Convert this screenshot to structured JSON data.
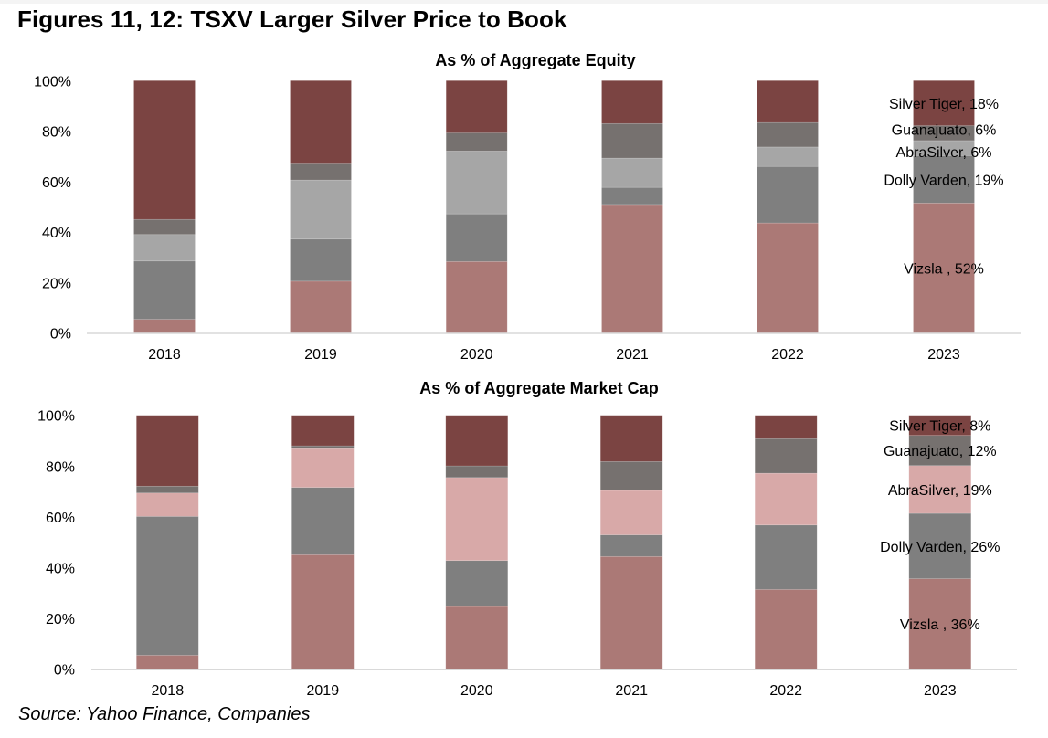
{
  "title": "Figures 11, 12: TSXV Larger Silver Price to Book",
  "source": "Source: Yahoo Finance, Companies",
  "chart_data": [
    {
      "type": "bar",
      "stacked": true,
      "title": "As % of Aggregate Equity",
      "xlabel": "",
      "ylabel": "",
      "categories": [
        "2018",
        "2019",
        "2020",
        "2021",
        "2022",
        "2023"
      ],
      "ylim": [
        0,
        100
      ],
      "yticks": [
        "0%",
        "20%",
        "40%",
        "60%",
        "80%",
        "100%"
      ],
      "grid": false,
      "legend": "none (labels on last bar)",
      "series": [
        {
          "name": "Vizsla",
          "color": "#AB7976",
          "values": [
            5.4,
            20.5,
            28.3,
            50.9,
            43.6,
            52
          ]
        },
        {
          "name": "Dolly Varden",
          "color": "#7F7F7F",
          "values": [
            23.1,
            16.7,
            18.9,
            6.8,
            22.4,
            19
          ]
        },
        {
          "name": "AbraSilver",
          "color": "#A6A6A6",
          "values": [
            10.5,
            23.4,
            24.9,
            11.6,
            7.7,
            6
          ]
        },
        {
          "name": "Guanajuato",
          "color": "#76716F",
          "values": [
            6.0,
            6.4,
            7.2,
            13.7,
            9.7,
            6
          ]
        },
        {
          "name": "Silver Tiger",
          "color": "#7B4442",
          "values": [
            55.0,
            33.0,
            20.7,
            17.0,
            16.6,
            18
          ]
        }
      ],
      "annotations": [
        {
          "series": "Vizsla",
          "category": "2023",
          "text": "Vizsla , 52%"
        },
        {
          "series": "Dolly Varden",
          "category": "2023",
          "text": "Dolly Varden, 19%"
        },
        {
          "series": "AbraSilver",
          "category": "2023",
          "text": "AbraSilver, 6%"
        },
        {
          "series": "Guanajuato",
          "category": "2023",
          "text": "Guanajuato, 6%"
        },
        {
          "series": "Silver Tiger",
          "category": "2023",
          "text": "Silver Tiger, 18%"
        }
      ]
    },
    {
      "type": "bar",
      "stacked": true,
      "title": "As % of Aggregate Market Cap",
      "xlabel": "",
      "ylabel": "",
      "categories": [
        "2018",
        "2019",
        "2020",
        "2021",
        "2022",
        "2023"
      ],
      "ylim": [
        0,
        100
      ],
      "yticks": [
        "0%",
        "20%",
        "40%",
        "60%",
        "80%",
        "100%"
      ],
      "grid": false,
      "legend": "none (labels on last bar)",
      "series": [
        {
          "name": "Vizsla",
          "color": "#AB7976",
          "values": [
            5.5,
            45.1,
            24.7,
            44.4,
            31.4,
            36
          ]
        },
        {
          "name": "Dolly Varden",
          "color": "#7F7F7F",
          "values": [
            54.7,
            26.5,
            18.1,
            8.5,
            25.4,
            26
          ]
        },
        {
          "name": "AbraSilver",
          "color": "#D8A9A8",
          "values": [
            9.2,
            15.3,
            32.7,
            17.5,
            20.4,
            19
          ]
        },
        {
          "name": "Guanajuato",
          "color": "#76716F",
          "values": [
            2.7,
            1.1,
            4.6,
            11.4,
            13.6,
            12
          ]
        },
        {
          "name": "Silver Tiger",
          "color": "#7B4442",
          "values": [
            27.9,
            12.0,
            19.9,
            18.2,
            9.2,
            8
          ]
        }
      ],
      "annotations": [
        {
          "series": "Vizsla",
          "category": "2023",
          "text": "Vizsla , 36%"
        },
        {
          "series": "Dolly Varden",
          "category": "2023",
          "text": "Dolly Varden, 26%"
        },
        {
          "series": "AbraSilver",
          "category": "2023",
          "text": "AbraSilver, 19%"
        },
        {
          "series": "Guanajuato",
          "category": "2023",
          "text": "Guanajuato, 12%"
        },
        {
          "series": "Silver Tiger",
          "category": "2023",
          "text": "Silver Tiger, 8%"
        }
      ]
    }
  ]
}
